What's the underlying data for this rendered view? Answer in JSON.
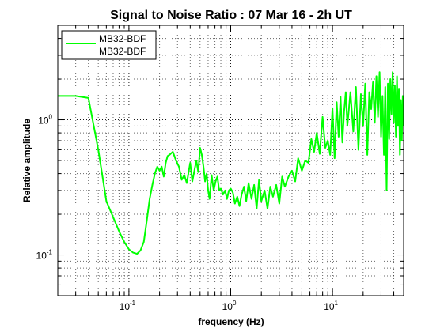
{
  "chart_data": {
    "type": "line",
    "title": "Signal to Noise Ratio : 07 Mar 16 - 2h UT",
    "xlabel": "frequency (Hz)",
    "ylabel": "Relative amplitude",
    "xscale": "log",
    "yscale": "log",
    "xlim": [
      0.02,
      50
    ],
    "ylim": [
      0.05,
      5
    ],
    "grid": true,
    "legend_position": "top-left",
    "x_ticks": [
      {
        "base": "10",
        "exp": "-1",
        "value": 0.1
      },
      {
        "base": "10",
        "exp": "0",
        "value": 1
      },
      {
        "base": "10",
        "exp": "1",
        "value": 10
      }
    ],
    "y_ticks": [
      {
        "base": "10",
        "exp": "-1",
        "value": 0.1
      },
      {
        "base": "10",
        "exp": "0",
        "value": 1
      }
    ],
    "legend": [
      "MB32-BDF",
      "MB32-BDF"
    ],
    "series": [
      {
        "name": "MB32-BDF",
        "color": "#00ff00",
        "x": [
          0.02,
          0.03,
          0.04,
          0.05,
          0.06,
          0.07,
          0.08,
          0.09,
          0.1,
          0.11,
          0.12,
          0.13,
          0.14,
          0.15,
          0.16,
          0.17,
          0.18,
          0.19,
          0.2,
          0.21,
          0.22,
          0.23,
          0.24,
          0.25,
          0.27,
          0.29,
          0.31,
          0.33,
          0.35,
          0.37,
          0.4,
          0.42,
          0.44,
          0.46,
          0.48,
          0.5,
          0.52,
          0.54,
          0.56,
          0.58,
          0.6,
          0.62,
          0.65,
          0.68,
          0.71,
          0.74,
          0.77,
          0.8,
          0.84,
          0.88,
          0.92,
          0.96,
          1.0,
          1.05,
          1.1,
          1.16,
          1.22,
          1.28,
          1.35,
          1.42,
          1.5,
          1.6,
          1.7,
          1.8,
          1.9,
          2.0,
          2.15,
          2.3,
          2.45,
          2.6,
          2.8,
          3.0,
          3.2,
          3.4,
          3.7,
          4.0,
          4.3,
          4.6,
          5.0,
          5.4,
          5.8,
          6.2,
          6.6,
          7.0,
          7.5,
          8.0,
          8.5,
          9.0,
          9.5,
          10.0,
          10.5,
          11.0,
          11.5,
          12.0,
          12.5,
          13.0,
          13.5,
          14.0,
          15.0,
          16.0,
          17.0,
          18.0,
          19.0,
          20.0,
          21.0,
          22.0,
          23.0,
          24.0,
          25.0,
          26.0,
          27.0,
          28.0,
          29.0,
          30.0,
          31.0,
          32.0,
          33.0,
          34.0,
          35.0,
          36.0,
          37.0,
          38.0,
          39.0,
          40.0,
          41.0,
          42.0,
          43.0,
          44.0,
          45.0,
          46.0,
          47.0,
          48.0,
          49.0,
          50.0
        ],
        "y": [
          1.5,
          1.5,
          1.45,
          0.6,
          0.25,
          0.19,
          0.15,
          0.125,
          0.11,
          0.104,
          0.102,
          0.108,
          0.125,
          0.18,
          0.26,
          0.33,
          0.4,
          0.45,
          0.42,
          0.45,
          0.38,
          0.48,
          0.54,
          0.55,
          0.58,
          0.5,
          0.45,
          0.36,
          0.39,
          0.34,
          0.48,
          0.35,
          0.42,
          0.5,
          0.41,
          0.62,
          0.55,
          0.45,
          0.35,
          0.4,
          0.3,
          0.26,
          0.39,
          0.3,
          0.35,
          0.38,
          0.3,
          0.31,
          0.28,
          0.3,
          0.26,
          0.3,
          0.31,
          0.29,
          0.24,
          0.27,
          0.23,
          0.28,
          0.32,
          0.25,
          0.34,
          0.26,
          0.33,
          0.22,
          0.36,
          0.25,
          0.3,
          0.22,
          0.32,
          0.27,
          0.33,
          0.24,
          0.38,
          0.32,
          0.38,
          0.42,
          0.35,
          0.52,
          0.42,
          0.5,
          0.48,
          0.72,
          0.58,
          0.8,
          0.56,
          1.05,
          0.62,
          0.7,
          0.55,
          1.22,
          0.52,
          1.35,
          0.75,
          1.48,
          0.68,
          1.15,
          1.6,
          0.9,
          1.6,
          0.82,
          1.75,
          0.6,
          1.55,
          0.9,
          1.85,
          0.55,
          1.6,
          1.2,
          1.9,
          0.95,
          2.1,
          1.05,
          2.25,
          0.75,
          1.5,
          0.55,
          1.75,
          0.3,
          1.85,
          0.72,
          2.0,
          1.1,
          2.25,
          0.95,
          1.8,
          0.75,
          2.1,
          0.9,
          1.7,
          0.55,
          1.4,
          0.7,
          1.5,
          0.9
        ]
      }
    ]
  }
}
